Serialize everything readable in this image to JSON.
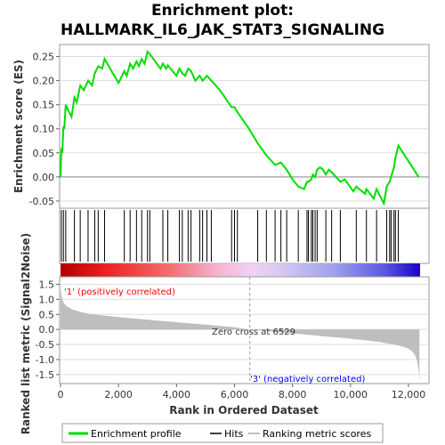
{
  "title_line1": "Enrichment plot:",
  "title_line2": "HALLMARK_IL6_JAK_STAT3_SIGNALING",
  "colors": {
    "profile": "#00dd00",
    "hits": "#000000",
    "metric": "#bebebe",
    "pos_text": "#ff0000",
    "neg_text": "#0000ff"
  },
  "chart_data": [
    {
      "type": "line",
      "name": "enrichment-plot",
      "ylabel": "Enrichment score (ES)",
      "ylim": [
        -0.065,
        0.275
      ],
      "xlim": [
        0,
        12400
      ],
      "yticks": [
        -0.05,
        0.0,
        0.05,
        0.1,
        0.15,
        0.2,
        0.25
      ],
      "ytick_labels": [
        "-0.05",
        "0.00",
        "0.05",
        "0.10",
        "0.15",
        "0.20",
        "0.25"
      ],
      "grid": true,
      "series": [
        {
          "name": "Enrichment profile",
          "x": [
            0,
            30,
            60,
            100,
            130,
            180,
            250,
            380,
            480,
            560,
            680,
            800,
            950,
            1090,
            1180,
            1300,
            1440,
            1520,
            2000,
            2200,
            2280,
            2400,
            2500,
            2620,
            2700,
            2800,
            2900,
            3000,
            3080,
            3450,
            3530,
            3640,
            3700,
            4000,
            4100,
            4200,
            4300,
            4400,
            4500,
            4650,
            4800,
            4900,
            5050,
            5200,
            5500,
            5900,
            6000,
            6100,
            6500,
            6800,
            7100,
            7400,
            7600,
            7800,
            8000,
            8200,
            8400,
            8500,
            8550,
            8650,
            8700,
            8780,
            8850,
            8950,
            9050,
            9150,
            9250,
            9350,
            9650,
            9800,
            10100,
            10200,
            10500,
            10550,
            10800,
            10900,
            11150,
            11250,
            11350,
            11400,
            11500,
            11550,
            11650,
            12350
          ],
          "y": [
            0.0,
            0.06,
            0.05,
            0.105,
            0.1,
            0.15,
            0.14,
            0.125,
            0.165,
            0.155,
            0.19,
            0.18,
            0.2,
            0.19,
            0.215,
            0.23,
            0.225,
            0.245,
            0.195,
            0.22,
            0.21,
            0.235,
            0.225,
            0.24,
            0.23,
            0.245,
            0.235,
            0.26,
            0.255,
            0.225,
            0.235,
            0.225,
            0.232,
            0.21,
            0.225,
            0.215,
            0.21,
            0.225,
            0.22,
            0.2,
            0.21,
            0.2,
            0.21,
            0.2,
            0.18,
            0.145,
            0.145,
            0.135,
            0.1,
            0.07,
            0.045,
            0.025,
            0.03,
            0.015,
            -0.005,
            -0.02,
            -0.025,
            -0.01,
            -0.01,
            -0.005,
            0.005,
            0.0,
            0.015,
            0.02,
            0.015,
            0.005,
            0.015,
            0.01,
            -0.01,
            -0.005,
            -0.03,
            -0.02,
            -0.035,
            -0.025,
            -0.045,
            -0.025,
            -0.055,
            -0.02,
            -0.01,
            0.0,
            0.02,
            0.04,
            0.065,
            0.0
          ]
        }
      ]
    },
    {
      "type": "scatter",
      "name": "hits",
      "xlim": [
        0,
        12400
      ],
      "x": [
        30,
        100,
        180,
        480,
        680,
        950,
        1180,
        1300,
        1520,
        2200,
        2400,
        2620,
        2800,
        3000,
        3080,
        3530,
        3700,
        4100,
        4200,
        4400,
        4500,
        4800,
        4900,
        5050,
        5200,
        5900,
        6000,
        6100,
        6800,
        7100,
        7400,
        7600,
        7800,
        8200,
        8500,
        8550,
        8650,
        8700,
        8780,
        8850,
        9150,
        9350,
        9650,
        10200,
        10550,
        10900,
        11250,
        11350,
        11400,
        11500,
        11550,
        11650
      ]
    },
    {
      "type": "area",
      "name": "ranked-list-metric",
      "ylabel": "Ranked list metric (Signal2Noise)",
      "xlabel": "Rank in Ordered Dataset",
      "xlim": [
        0,
        12400
      ],
      "ylim": [
        -1.8,
        1.75
      ],
      "yticks": [
        -1.5,
        -1.0,
        -0.5,
        0.0,
        0.5,
        1.0,
        1.5
      ],
      "ytick_labels": [
        "-1.5",
        "-1.0",
        "-0.5",
        "0.0",
        "0.5",
        "1.0",
        "1.5"
      ],
      "xticks": [
        0,
        2000,
        4000,
        6000,
        8000,
        10000,
        12000
      ],
      "xtick_labels": [
        "0",
        "2,000",
        "4,000",
        "6,000",
        "8,000",
        "10,000",
        "12,000"
      ],
      "x": [
        0,
        10,
        50,
        100,
        200,
        400,
        700,
        1000,
        1500,
        2000,
        3000,
        4000,
        5000,
        6000,
        6529,
        7000,
        8000,
        9000,
        10000,
        10500,
        11000,
        11500,
        11800,
        12000,
        12150,
        12250,
        12300,
        12350,
        12380
      ],
      "y": [
        1.75,
        1.3,
        1.05,
        0.9,
        0.78,
        0.66,
        0.58,
        0.52,
        0.46,
        0.41,
        0.32,
        0.24,
        0.16,
        0.07,
        0.0,
        -0.05,
        -0.13,
        -0.22,
        -0.31,
        -0.36,
        -0.42,
        -0.5,
        -0.57,
        -0.64,
        -0.75,
        -0.9,
        -1.05,
        -1.35,
        -1.75
      ]
    }
  ],
  "annotations": {
    "positive": "'1' (positively correlated)",
    "negative": "'3' (negatively correlated)",
    "zero_cross": "Zero cross at 6529"
  },
  "legend": {
    "profile": "Enrichment profile",
    "hits": "Hits",
    "metric": "Ranking metric scores"
  }
}
